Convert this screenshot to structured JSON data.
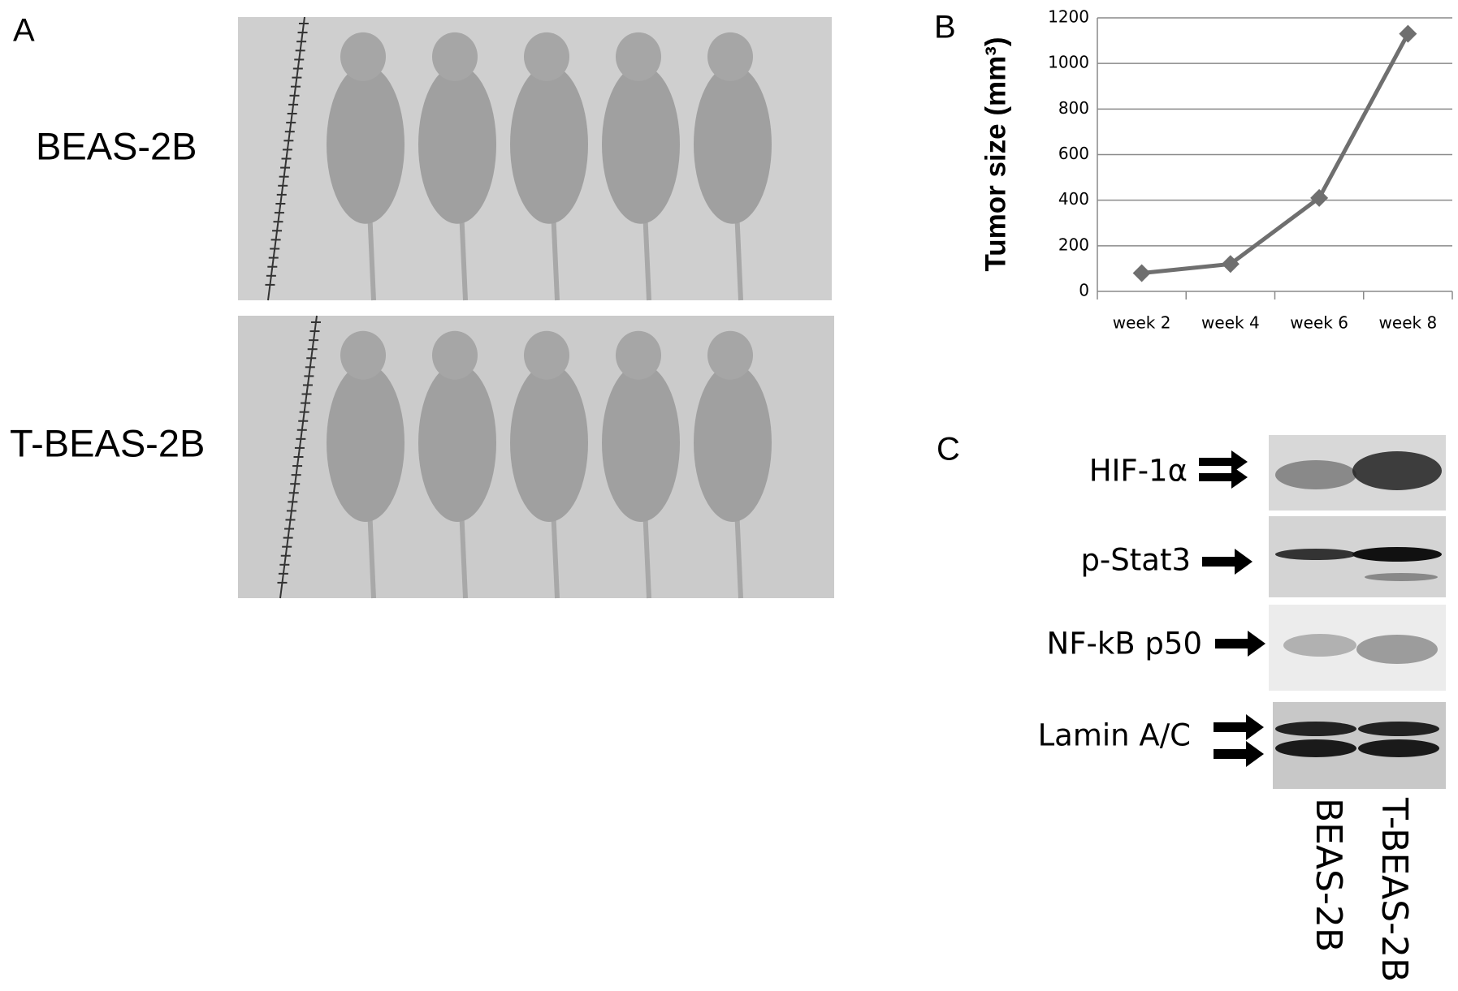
{
  "panels": {
    "a": {
      "label": "A",
      "rows": [
        "BEAS-2B",
        "T-BEAS-2B"
      ]
    },
    "b": {
      "label": "B"
    },
    "c": {
      "label": "C",
      "proteins": [
        "HIF-1α",
        "p-Stat3",
        "NF-kB p50",
        "Lamin A/C"
      ],
      "lanes": [
        "BEAS-2B",
        "T-BEAS-2B"
      ]
    }
  },
  "chart_data": {
    "type": "line",
    "ylabel": "Tumor size (mm³)",
    "categories": [
      "week 2",
      "week 4",
      "week 6",
      "week 8"
    ],
    "values": [
      80,
      120,
      410,
      1130
    ],
    "color": "#6f6f6f",
    "ylim": [
      0,
      1200
    ],
    "yticks": [
      0,
      200,
      400,
      600,
      800,
      1000,
      1200
    ],
    "grid": true
  }
}
